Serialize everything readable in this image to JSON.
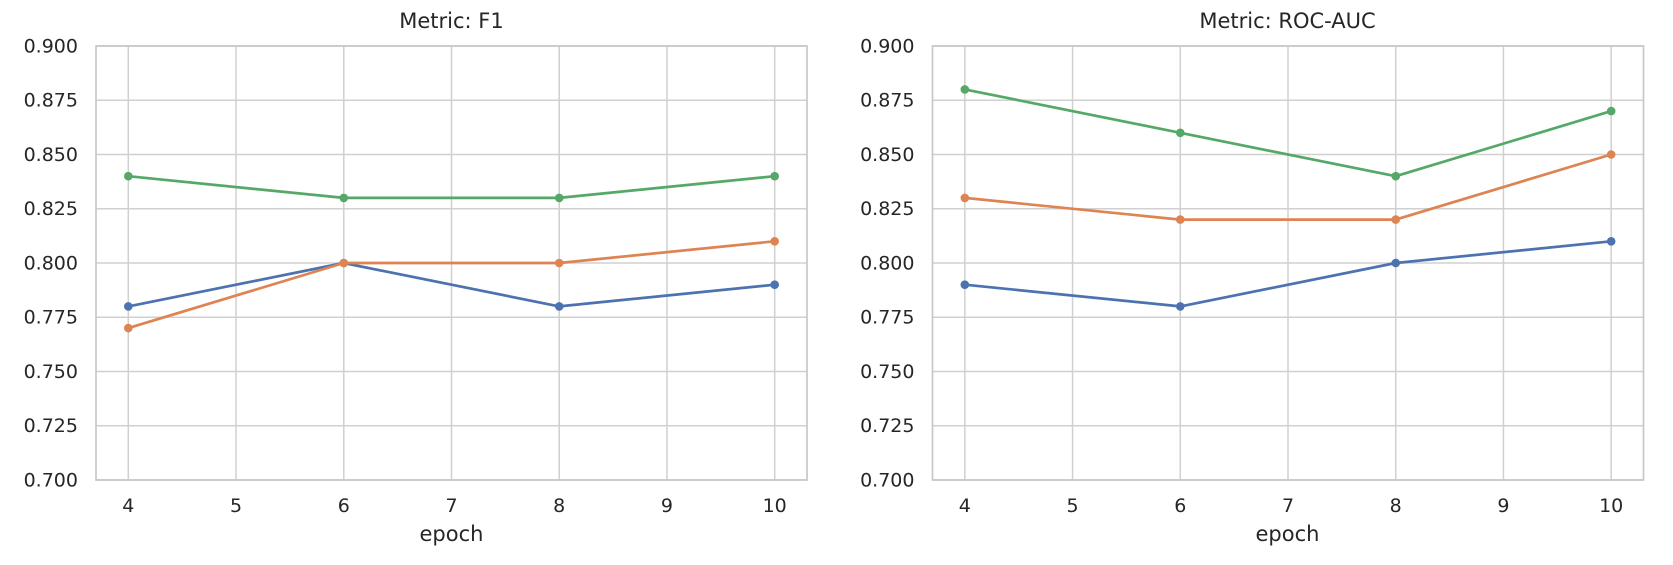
{
  "style": {
    "background": "#ffffff",
    "text_color": "#262626",
    "grid_color": "#D0D0D0",
    "spine_color": "#C8C8C8",
    "line_width": 2.7,
    "marker_radius": 4.3
  },
  "chart_data": [
    {
      "type": "line",
      "title": "Metric: F1",
      "xlabel": "epoch",
      "ylabel": "",
      "x": [
        4,
        6,
        8,
        10
      ],
      "xticks": [
        4,
        5,
        6,
        7,
        8,
        9,
        10
      ],
      "ytick_labels": [
        "0.700",
        "0.725",
        "0.750",
        "0.775",
        "0.800",
        "0.825",
        "0.850",
        "0.875",
        "0.900"
      ],
      "ylim": [
        0.7,
        0.9
      ],
      "xlim": [
        3.7,
        10.3
      ],
      "grid": true,
      "legend": "none",
      "series": [
        {
          "name": "blue-series",
          "color": "#4C72B0",
          "values": [
            0.78,
            0.8,
            0.78,
            0.79
          ]
        },
        {
          "name": "orange-series",
          "color": "#DD8452",
          "values": [
            0.77,
            0.8,
            0.8,
            0.81
          ]
        },
        {
          "name": "green-series",
          "color": "#55A868",
          "values": [
            0.84,
            0.83,
            0.83,
            0.84
          ]
        }
      ]
    },
    {
      "type": "line",
      "title": "Metric: ROC-AUC",
      "xlabel": "epoch",
      "ylabel": "",
      "x": [
        4,
        6,
        8,
        10
      ],
      "xticks": [
        4,
        5,
        6,
        7,
        8,
        9,
        10
      ],
      "ytick_labels": [
        "0.700",
        "0.725",
        "0.750",
        "0.775",
        "0.800",
        "0.825",
        "0.850",
        "0.875",
        "0.900"
      ],
      "ylim": [
        0.7,
        0.9
      ],
      "xlim": [
        3.7,
        10.3
      ],
      "grid": true,
      "legend": "none",
      "series": [
        {
          "name": "blue-series",
          "color": "#4C72B0",
          "values": [
            0.79,
            0.78,
            0.8,
            0.81
          ]
        },
        {
          "name": "orange-series",
          "color": "#DD8452",
          "values": [
            0.83,
            0.82,
            0.82,
            0.85
          ]
        },
        {
          "name": "green-series",
          "color": "#55A868",
          "values": [
            0.88,
            0.86,
            0.84,
            0.87
          ]
        }
      ]
    }
  ]
}
